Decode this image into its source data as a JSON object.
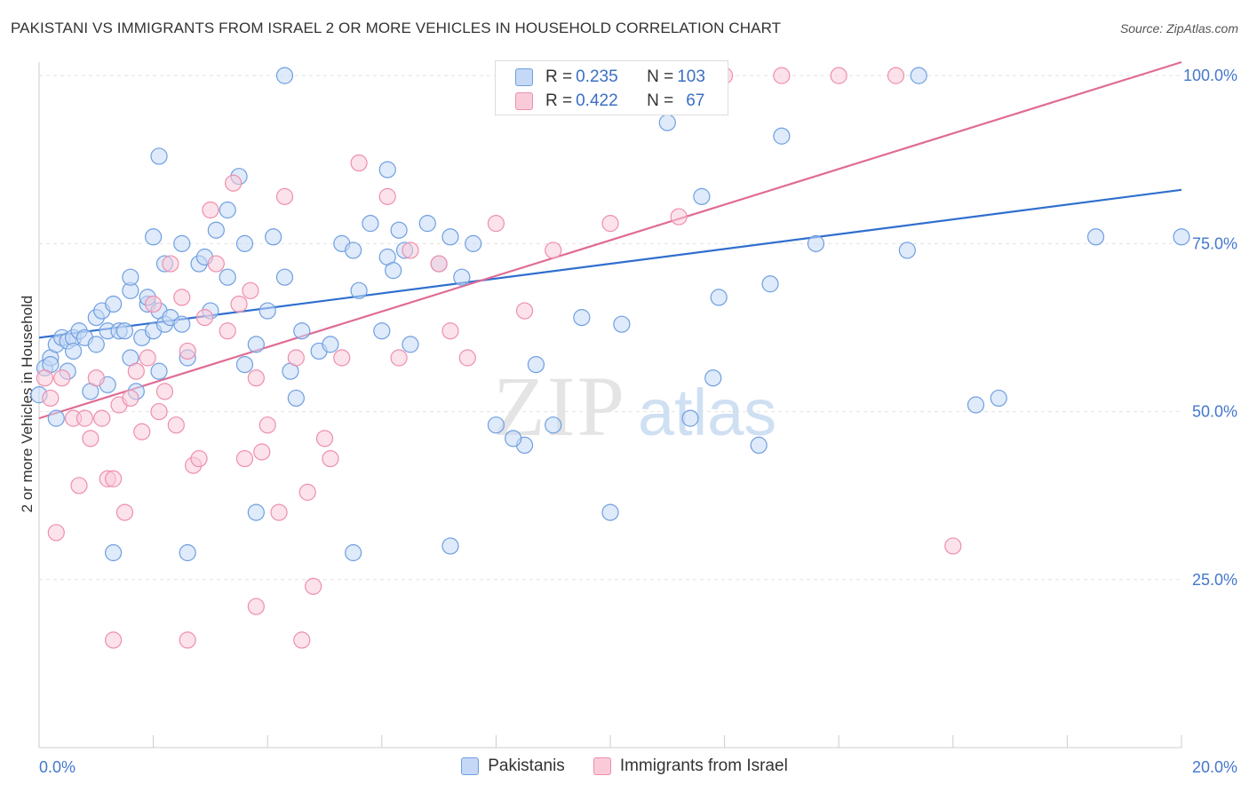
{
  "header": {
    "title": "PAKISTANI VS IMMIGRANTS FROM ISRAEL 2 OR MORE VEHICLES IN HOUSEHOLD CORRELATION CHART",
    "source": "Source: ZipAtlas.com"
  },
  "colors": {
    "blue_fill": "#c5d8f5",
    "blue_stroke": "#6f9fe0",
    "blue_line": "#2f6fce",
    "pink_fill": "#f9cbd9",
    "pink_stroke": "#ee8fad",
    "pink_line": "#e06b95",
    "axis_text": "#4477cc"
  },
  "legend": {
    "rows": [
      {
        "r_label": "R = ",
        "r_value": "0.235",
        "n_label": "N = ",
        "n_value": "103"
      },
      {
        "r_label": "R = ",
        "r_value": "0.422",
        "n_label": "N = ",
        "n_value": "67"
      }
    ]
  },
  "watermark": {
    "zip": "ZIP",
    "atlas": "atlas"
  },
  "chart_data": {
    "type": "scatter",
    "title": "PAKISTANI VS IMMIGRANTS FROM ISRAEL 2 OR MORE VEHICLES IN HOUSEHOLD CORRELATION CHART",
    "xlabel": "",
    "ylabel": "2 or more Vehicles in Household",
    "xlim": [
      0,
      20
    ],
    "ylim": [
      0,
      102
    ],
    "x_ticks": [
      "0.0%",
      "20.0%"
    ],
    "y_ticks": [
      {
        "value": 25,
        "label": "25.0%"
      },
      {
        "value": 50,
        "label": "50.0%"
      },
      {
        "value": 75,
        "label": "75.0%"
      },
      {
        "value": 100,
        "label": "100.0%"
      }
    ],
    "grid": true,
    "legend_position": "bottom",
    "series": [
      {
        "name": "Pakistanis",
        "color": "#6f9fe0",
        "points": [
          [
            0.0,
            52.5
          ],
          [
            0.1,
            56.5
          ],
          [
            0.2,
            58
          ],
          [
            0.2,
            57
          ],
          [
            0.3,
            60
          ],
          [
            0.4,
            61
          ],
          [
            0.5,
            60.5
          ],
          [
            0.6,
            61
          ],
          [
            0.6,
            59
          ],
          [
            0.7,
            62
          ],
          [
            0.8,
            61
          ],
          [
            0.9,
            53
          ],
          [
            1.0,
            60
          ],
          [
            1.0,
            64
          ],
          [
            1.1,
            65
          ],
          [
            1.2,
            54
          ],
          [
            1.2,
            62
          ],
          [
            1.3,
            66
          ],
          [
            1.4,
            62
          ],
          [
            1.5,
            62
          ],
          [
            1.6,
            68
          ],
          [
            1.6,
            70
          ],
          [
            1.6,
            58
          ],
          [
            1.7,
            53
          ],
          [
            1.8,
            61
          ],
          [
            1.9,
            66
          ],
          [
            1.9,
            67
          ],
          [
            2.0,
            62
          ],
          [
            2.0,
            76
          ],
          [
            2.1,
            65
          ],
          [
            2.1,
            56
          ],
          [
            2.2,
            72
          ],
          [
            2.2,
            63
          ],
          [
            2.3,
            64
          ],
          [
            2.5,
            63
          ],
          [
            2.5,
            75
          ],
          [
            2.6,
            58
          ],
          [
            2.8,
            72
          ],
          [
            2.9,
            73
          ],
          [
            3.0,
            65
          ],
          [
            3.1,
            77
          ],
          [
            3.3,
            80
          ],
          [
            3.3,
            70
          ],
          [
            3.5,
            85
          ],
          [
            3.6,
            75
          ],
          [
            3.8,
            60
          ],
          [
            4.0,
            65
          ],
          [
            4.1,
            76
          ],
          [
            4.3,
            70
          ],
          [
            4.4,
            56
          ],
          [
            4.5,
            52
          ],
          [
            4.6,
            62
          ],
          [
            4.9,
            59
          ],
          [
            5.1,
            60
          ],
          [
            5.3,
            75
          ],
          [
            5.5,
            74
          ],
          [
            5.6,
            68
          ],
          [
            5.8,
            78
          ],
          [
            6.0,
            62
          ],
          [
            6.1,
            73
          ],
          [
            6.2,
            71
          ],
          [
            6.3,
            77
          ],
          [
            6.4,
            74
          ],
          [
            6.5,
            60
          ],
          [
            6.8,
            78
          ],
          [
            7.0,
            72
          ],
          [
            7.2,
            76
          ],
          [
            7.4,
            70
          ],
          [
            7.6,
            75
          ],
          [
            8.0,
            48
          ],
          [
            8.5,
            45
          ],
          [
            8.7,
            57
          ],
          [
            9.5,
            64
          ],
          [
            10.0,
            35
          ],
          [
            10.2,
            63
          ],
          [
            11.0,
            93
          ],
          [
            11.4,
            49
          ],
          [
            11.6,
            82
          ],
          [
            11.8,
            55
          ],
          [
            11.9,
            67
          ],
          [
            12.6,
            45
          ],
          [
            12.8,
            69
          ],
          [
            13.0,
            91
          ],
          [
            13.6,
            75
          ],
          [
            15.2,
            74
          ],
          [
            15.4,
            100
          ],
          [
            16.4,
            51
          ],
          [
            16.8,
            52
          ],
          [
            18.5,
            76
          ],
          [
            20.0,
            76
          ],
          [
            3.8,
            35
          ],
          [
            5.5,
            29
          ],
          [
            7.2,
            30
          ],
          [
            2.6,
            29
          ],
          [
            4.3,
            100
          ],
          [
            6.1,
            86
          ],
          [
            2.1,
            88
          ],
          [
            1.3,
            29
          ],
          [
            0.3,
            49
          ],
          [
            0.5,
            56
          ],
          [
            9.0,
            48
          ],
          [
            8.3,
            46
          ],
          [
            3.6,
            57
          ]
        ]
      },
      {
        "name": "Immigrants from Israel",
        "color": "#ee8fad",
        "points": [
          [
            0.1,
            55
          ],
          [
            0.2,
            52
          ],
          [
            0.3,
            32
          ],
          [
            0.4,
            55
          ],
          [
            0.6,
            49
          ],
          [
            0.7,
            39
          ],
          [
            0.8,
            49
          ],
          [
            0.9,
            46
          ],
          [
            1.0,
            55
          ],
          [
            1.1,
            49
          ],
          [
            1.2,
            40
          ],
          [
            1.3,
            40
          ],
          [
            1.4,
            51
          ],
          [
            1.5,
            35
          ],
          [
            1.6,
            52
          ],
          [
            1.7,
            56
          ],
          [
            1.8,
            47
          ],
          [
            1.9,
            58
          ],
          [
            2.0,
            66
          ],
          [
            2.1,
            50
          ],
          [
            2.2,
            53
          ],
          [
            2.3,
            72
          ],
          [
            2.4,
            48
          ],
          [
            2.5,
            67
          ],
          [
            2.6,
            59
          ],
          [
            2.7,
            42
          ],
          [
            2.8,
            43
          ],
          [
            2.9,
            64
          ],
          [
            3.0,
            80
          ],
          [
            3.1,
            72
          ],
          [
            3.3,
            62
          ],
          [
            3.4,
            84
          ],
          [
            3.5,
            66
          ],
          [
            3.6,
            43
          ],
          [
            3.7,
            68
          ],
          [
            3.8,
            55
          ],
          [
            3.9,
            44
          ],
          [
            4.0,
            48
          ],
          [
            4.2,
            35
          ],
          [
            4.3,
            82
          ],
          [
            4.5,
            58
          ],
          [
            4.7,
            38
          ],
          [
            5.0,
            46
          ],
          [
            5.1,
            43
          ],
          [
            5.3,
            58
          ],
          [
            5.6,
            87
          ],
          [
            6.1,
            82
          ],
          [
            6.3,
            58
          ],
          [
            6.5,
            74
          ],
          [
            7.0,
            72
          ],
          [
            7.2,
            62
          ],
          [
            7.5,
            58
          ],
          [
            8.0,
            78
          ],
          [
            8.5,
            65
          ],
          [
            9.0,
            74
          ],
          [
            10.0,
            78
          ],
          [
            11.2,
            79
          ],
          [
            12.0,
            100
          ],
          [
            13.0,
            100
          ],
          [
            14.0,
            100
          ],
          [
            15.0,
            100
          ],
          [
            16.0,
            30
          ],
          [
            1.3,
            16
          ],
          [
            2.6,
            16
          ],
          [
            3.8,
            21
          ],
          [
            4.8,
            24
          ],
          [
            4.6,
            16
          ]
        ]
      }
    ],
    "trendlines": [
      {
        "series": "Pakistanis",
        "x": [
          0,
          20
        ],
        "y": [
          61,
          83
        ]
      },
      {
        "series": "Immigrants from Israel",
        "x": [
          0,
          20
        ],
        "y": [
          49,
          102
        ]
      }
    ]
  }
}
